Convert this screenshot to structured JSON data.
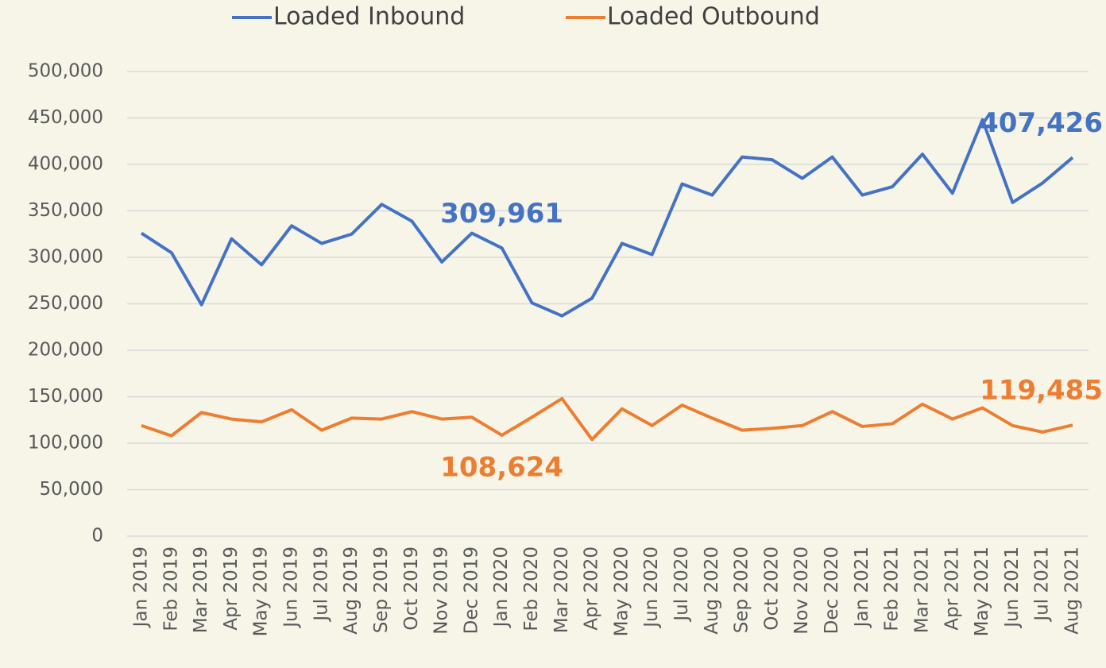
{
  "chart_data": {
    "type": "line",
    "categories": [
      "Jan 2019",
      "Feb 2019",
      "Mar 2019",
      "Apr 2019",
      "May 2019",
      "Jun 2019",
      "Jul 2019",
      "Aug 2019",
      "Sep 2019",
      "Oct 2019",
      "Nov 2019",
      "Dec 2019",
      "Jan 2020",
      "Feb 2020",
      "Mar 2020",
      "Apr 2020",
      "May 2020",
      "Jun 2020",
      "Jul 2020",
      "Aug 2020",
      "Sep 2020",
      "Oct 2020",
      "Nov 2020",
      "Dec 2020",
      "Jan 2021",
      "Feb 2021",
      "Mar 2021",
      "Apr 2021",
      "May 2021",
      "Jun 2021",
      "Jul 2021",
      "Aug 2021"
    ],
    "series": [
      {
        "name": "Loaded Inbound",
        "color": "#4472c4",
        "values": [
          326000,
          305000,
          249000,
          320000,
          292000,
          334000,
          315000,
          325000,
          357000,
          339000,
          295000,
          326000,
          309961,
          251000,
          237000,
          256000,
          315000,
          303000,
          379000,
          367000,
          408000,
          405000,
          385000,
          408000,
          367000,
          376000,
          411000,
          369000,
          448000,
          359000,
          380000,
          407426
        ],
        "value_labels": [
          null,
          null,
          null,
          null,
          null,
          null,
          null,
          null,
          null,
          null,
          null,
          null,
          "309,961",
          null,
          null,
          null,
          null,
          null,
          null,
          null,
          null,
          null,
          null,
          null,
          null,
          null,
          null,
          null,
          null,
          null,
          null,
          "407,426"
        ]
      },
      {
        "name": "Loaded Outbound",
        "color": "#ed7d31",
        "values": [
          119000,
          108000,
          133000,
          126000,
          123000,
          136000,
          114000,
          127000,
          126000,
          134000,
          126000,
          128000,
          108624,
          128000,
          148000,
          104000,
          137000,
          119000,
          141000,
          127000,
          114000,
          116000,
          119000,
          134000,
          118000,
          121000,
          142000,
          126000,
          138000,
          119000,
          112000,
          119485
        ],
        "value_labels": [
          null,
          null,
          null,
          null,
          null,
          null,
          null,
          null,
          null,
          null,
          null,
          null,
          "108,624",
          null,
          null,
          null,
          null,
          null,
          null,
          null,
          null,
          null,
          null,
          null,
          null,
          null,
          null,
          null,
          null,
          null,
          null,
          "119,485"
        ]
      }
    ],
    "ylim": [
      0,
      500000
    ],
    "yticks": [
      0,
      {
        "value": 50000,
        "label": "50,000"
      },
      {
        "value": 100000,
        "label": "100,000"
      },
      {
        "value": 150000,
        "label": "150,000"
      },
      {
        "value": 200000,
        "label": "200,000"
      },
      {
        "value": 250000,
        "label": "250,000"
      },
      {
        "value": 300000,
        "label": "300,000"
      },
      {
        "value": 350000,
        "label": "350,000"
      },
      {
        "value": 400000,
        "label": "400,000"
      },
      {
        "value": 450000,
        "label": "450,000"
      },
      {
        "value": 500000,
        "label": "500,000"
      }
    ],
    "grid": true,
    "legend": "top"
  }
}
